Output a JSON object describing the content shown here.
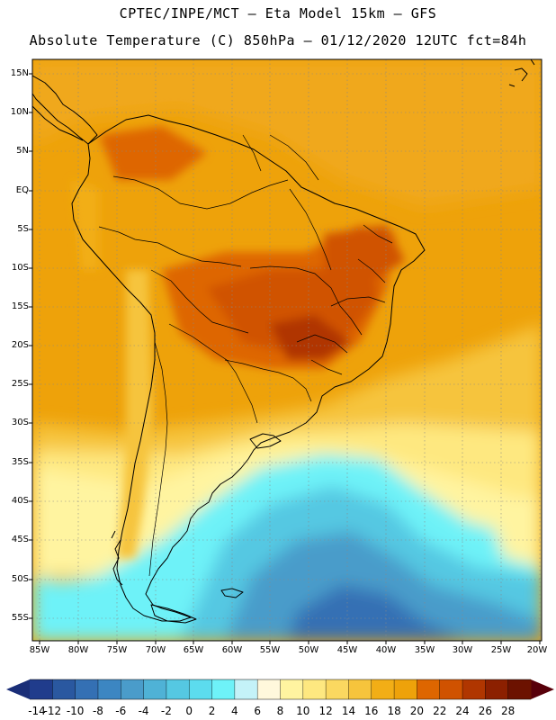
{
  "header": {
    "line1": "CPTEC/INPE/MCT –  Eta Model 15km – GFS",
    "line2": "Absolute Temperature (C) 850hPa – 01/12/2020 12UTC fct=84h"
  },
  "map": {
    "lat_ticks": [
      "15N",
      "10N",
      "5N",
      "EQ",
      "5S",
      "10S",
      "15S",
      "20S",
      "25S",
      "30S",
      "35S",
      "40S",
      "45S",
      "50S",
      "55S"
    ],
    "lon_ticks": [
      "85W",
      "80W",
      "75W",
      "70W",
      "65W",
      "60W",
      "55W",
      "50W",
      "45W",
      "40W",
      "35W",
      "30W",
      "25W",
      "20W"
    ]
  },
  "colorbar": {
    "labels": [
      "-14",
      "-12",
      "-10",
      "-8",
      "-6",
      "-4",
      "-2",
      "0",
      "2",
      "4",
      "6",
      "8",
      "10",
      "12",
      "14",
      "16",
      "18",
      "20",
      "22",
      "24",
      "26",
      "28"
    ],
    "colors": [
      "#203c8c",
      "#2a58a0",
      "#3470b4",
      "#3c86c2",
      "#4a9cca",
      "#4fb2d6",
      "#55c8e2",
      "#5cdcee",
      "#6ef2f8",
      "#c4f2f8",
      "#fff8dc",
      "#fff4a0",
      "#fee880",
      "#fbd860",
      "#f6c43c",
      "#f2ae16",
      "#eea20a",
      "#de6600",
      "#d05200",
      "#b03600",
      "#8c2000",
      "#6c1200"
    ],
    "left_arrow_color": "#1a2e78",
    "right_arrow_color": "#58000a"
  }
}
